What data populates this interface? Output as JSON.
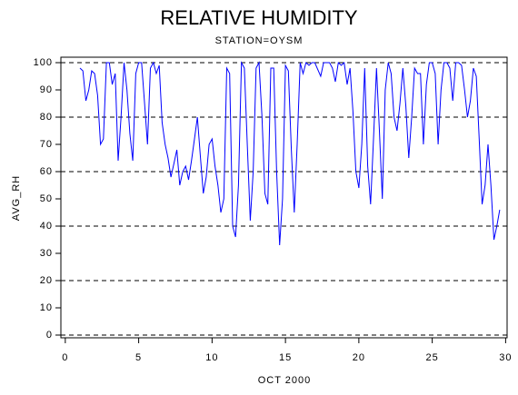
{
  "chart_data": {
    "type": "line",
    "title": "RELATIVE HUMIDITY",
    "subtitle": "STATION=OYSM",
    "x_label": "OCT 2000",
    "y_label": "AVG_RH",
    "xlim": [
      -0.3,
      30.1
    ],
    "ylim": [
      -1,
      102
    ],
    "xticks": [
      0,
      5,
      10,
      15,
      20,
      25,
      30
    ],
    "yticks": [
      0,
      10,
      20,
      30,
      40,
      50,
      60,
      70,
      80,
      90,
      100
    ],
    "grid": "dashed",
    "series": [
      {
        "name": "AVG_RH",
        "color": "#0000ff",
        "x": [
          1.0,
          1.2,
          1.4,
          1.6,
          1.8,
          2.0,
          2.2,
          2.4,
          2.6,
          2.8,
          3.0,
          3.2,
          3.4,
          3.6,
          3.8,
          4.0,
          4.2,
          4.4,
          4.6,
          4.8,
          5.0,
          5.2,
          5.4,
          5.6,
          5.8,
          6.0,
          6.2,
          6.4,
          6.6,
          6.8,
          7.0,
          7.2,
          7.4,
          7.6,
          7.8,
          8.0,
          8.2,
          8.4,
          8.6,
          8.8,
          9.0,
          9.2,
          9.4,
          9.6,
          9.8,
          10.0,
          10.2,
          10.4,
          10.6,
          10.8,
          11.0,
          11.2,
          11.4,
          11.6,
          11.8,
          12.0,
          12.2,
          12.4,
          12.6,
          12.8,
          13.0,
          13.2,
          13.4,
          13.6,
          13.8,
          14.0,
          14.2,
          14.4,
          14.6,
          14.8,
          15.0,
          15.2,
          15.4,
          15.6,
          15.8,
          16.0,
          16.2,
          16.4,
          16.6,
          16.8,
          17.0,
          17.4,
          17.6,
          18.0,
          18.2,
          18.4,
          18.6,
          18.8,
          19.0,
          19.2,
          19.4,
          19.6,
          19.8,
          20.0,
          20.2,
          20.4,
          20.6,
          20.8,
          21.0,
          21.2,
          21.4,
          21.6,
          21.8,
          22.0,
          22.2,
          22.4,
          22.6,
          22.8,
          23.0,
          23.2,
          23.4,
          23.6,
          23.8,
          24.0,
          24.2,
          24.4,
          24.6,
          24.8,
          25.0,
          25.2,
          25.4,
          25.6,
          25.8,
          26.0,
          26.2,
          26.4,
          26.6,
          26.8,
          27.0,
          27.2,
          27.4,
          27.6,
          27.8,
          28.0,
          28.2,
          28.4,
          28.6,
          28.8,
          29.0,
          29.2,
          29.4,
          29.6
        ],
        "values": [
          98,
          97,
          86,
          90,
          97,
          96,
          88,
          70,
          72,
          100,
          100,
          92,
          96,
          64,
          80,
          100,
          90,
          74,
          64,
          96,
          100,
          100,
          85,
          70,
          98,
          100,
          96,
          99,
          78,
          70,
          65,
          58,
          63,
          68,
          55,
          60,
          62,
          57,
          64,
          72,
          80,
          66,
          52,
          58,
          70,
          72,
          62,
          55,
          45,
          50,
          98,
          96,
          40,
          36,
          55,
          100,
          98,
          70,
          42,
          60,
          98,
          100,
          80,
          52,
          48,
          98,
          98,
          60,
          33,
          50,
          99,
          97,
          68,
          45,
          70,
          100,
          96,
          100,
          99,
          100,
          100,
          95,
          100,
          100,
          98,
          93,
          100,
          99,
          100,
          92,
          98,
          82,
          60,
          54,
          70,
          98,
          62,
          48,
          72,
          98,
          75,
          50,
          90,
          100,
          96,
          80,
          75,
          85,
          98,
          84,
          65,
          80,
          98,
          96,
          96,
          70,
          92,
          100,
          100,
          96,
          70,
          90,
          100,
          100,
          98,
          86,
          100,
          100,
          99,
          90,
          80,
          86,
          98,
          95,
          72,
          48,
          55,
          70,
          55,
          35,
          40,
          46
        ]
      }
    ]
  }
}
